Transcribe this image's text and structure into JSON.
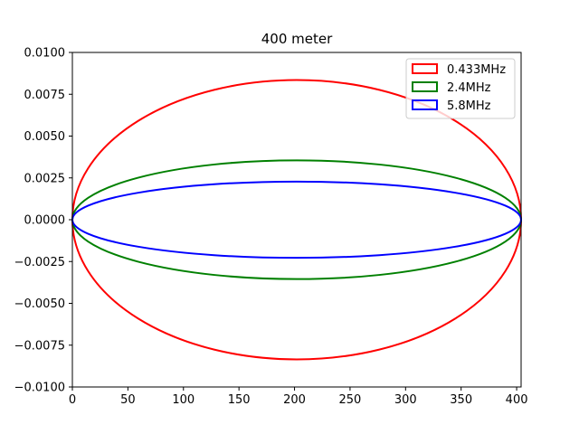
{
  "chart_data": {
    "type": "line",
    "title": "400 meter",
    "xlabel": "",
    "ylabel": "",
    "xlim": [
      0,
      404
    ],
    "ylim": [
      -0.01,
      0.01
    ],
    "grid": false,
    "legend_position": "top-right",
    "x_ticks": [
      0,
      50,
      100,
      150,
      200,
      250,
      300,
      350,
      400
    ],
    "x_tick_labels": [
      "0",
      "50",
      "100",
      "150",
      "200",
      "250",
      "300",
      "350",
      "400"
    ],
    "y_ticks": [
      0.01,
      0.0075,
      0.005,
      0.0025,
      0.0,
      -0.0025,
      -0.005,
      -0.0075,
      -0.01
    ],
    "y_tick_labels": [
      "0.0100",
      "0.0075",
      "0.0050",
      "0.0025",
      "0.0000",
      "−0.0025",
      "−0.0050",
      "−0.0075",
      "−0.0100"
    ],
    "series": [
      {
        "name": "0.433MHz",
        "color": "#ff0000",
        "shape": "ellipse",
        "x_center": 202,
        "x_radius": 202,
        "y_radius": 0.00835
      },
      {
        "name": "2.4MHz",
        "color": "#008000",
        "shape": "ellipse",
        "x_center": 202,
        "x_radius": 202,
        "y_radius": 0.00355
      },
      {
        "name": "5.8MHz",
        "color": "#0000ff",
        "shape": "ellipse",
        "x_center": 202,
        "x_radius": 202,
        "y_radius": 0.00228
      }
    ]
  }
}
